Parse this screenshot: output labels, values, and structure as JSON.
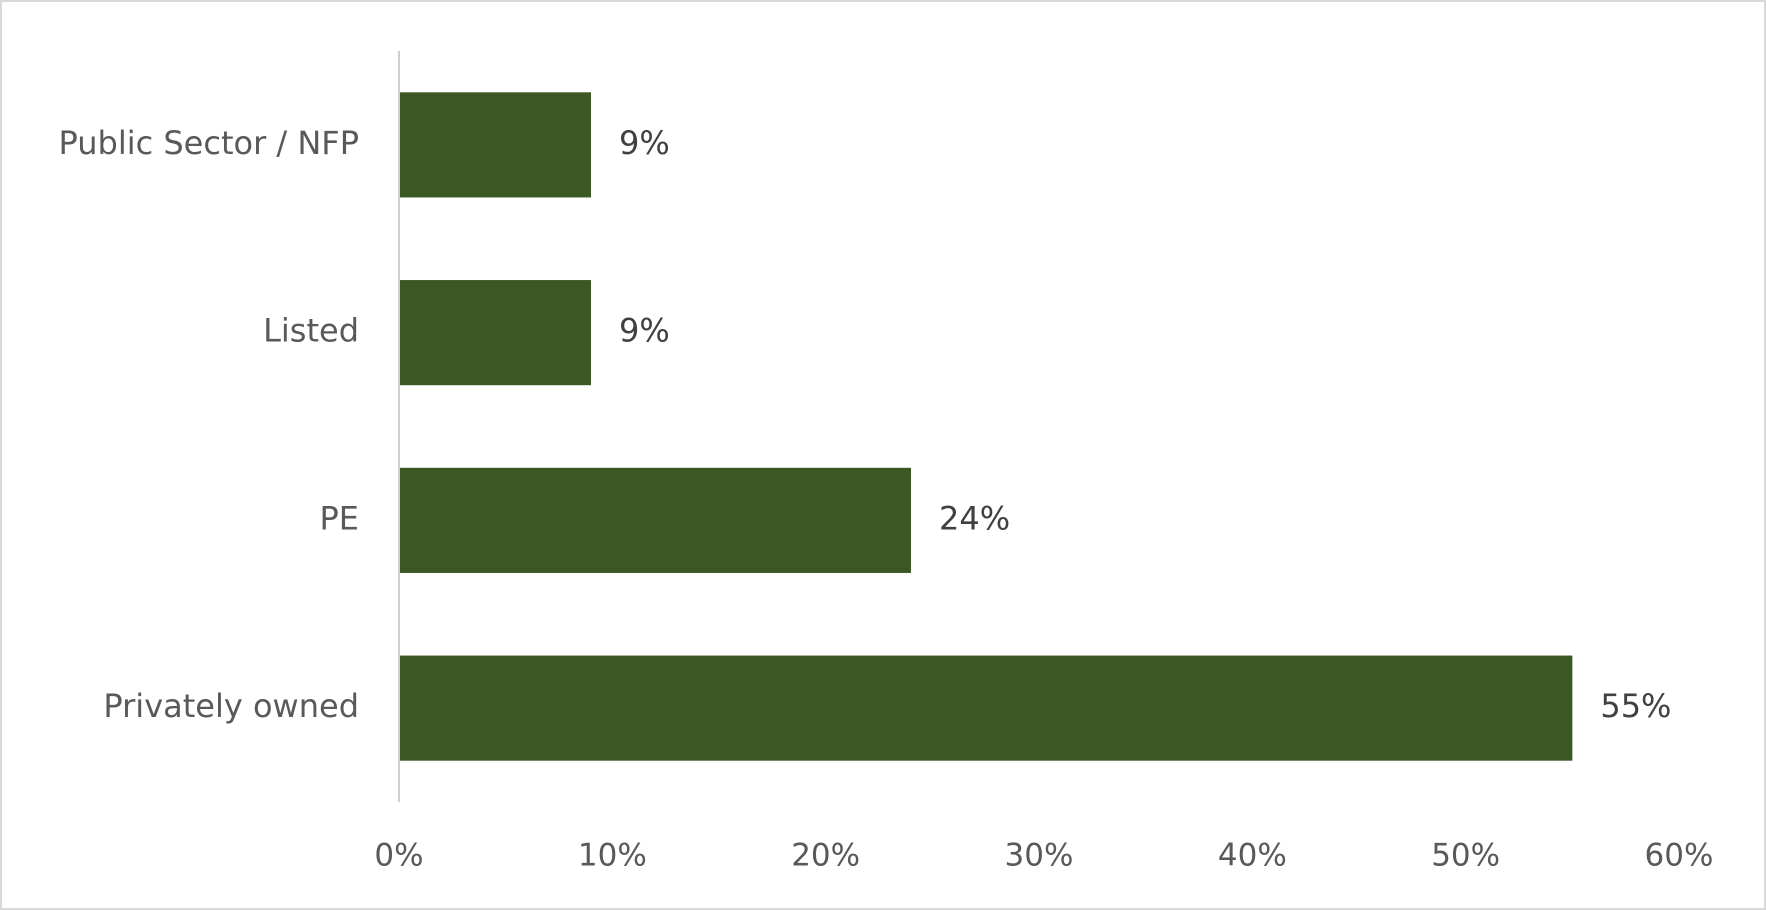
{
  "chart_data": {
    "type": "barh",
    "categories": [
      "Public Sector / NFP",
      "Listed",
      "PE",
      "Privately owned"
    ],
    "values": [
      9,
      9,
      24,
      55
    ],
    "value_labels": [
      "9%",
      "9%",
      "24%",
      "55%"
    ],
    "color": "#3a5724",
    "xlim": [
      0,
      60
    ],
    "xticks": [
      {
        "value": 0,
        "label": "0%"
      },
      {
        "value": 10,
        "label": "10%"
      },
      {
        "value": 20,
        "label": "20%"
      },
      {
        "value": 30,
        "label": "30%"
      },
      {
        "value": 40,
        "label": "40%"
      },
      {
        "value": 50,
        "label": "50%"
      },
      {
        "value": 60,
        "label": "60%"
      }
    ],
    "grid": false
  }
}
